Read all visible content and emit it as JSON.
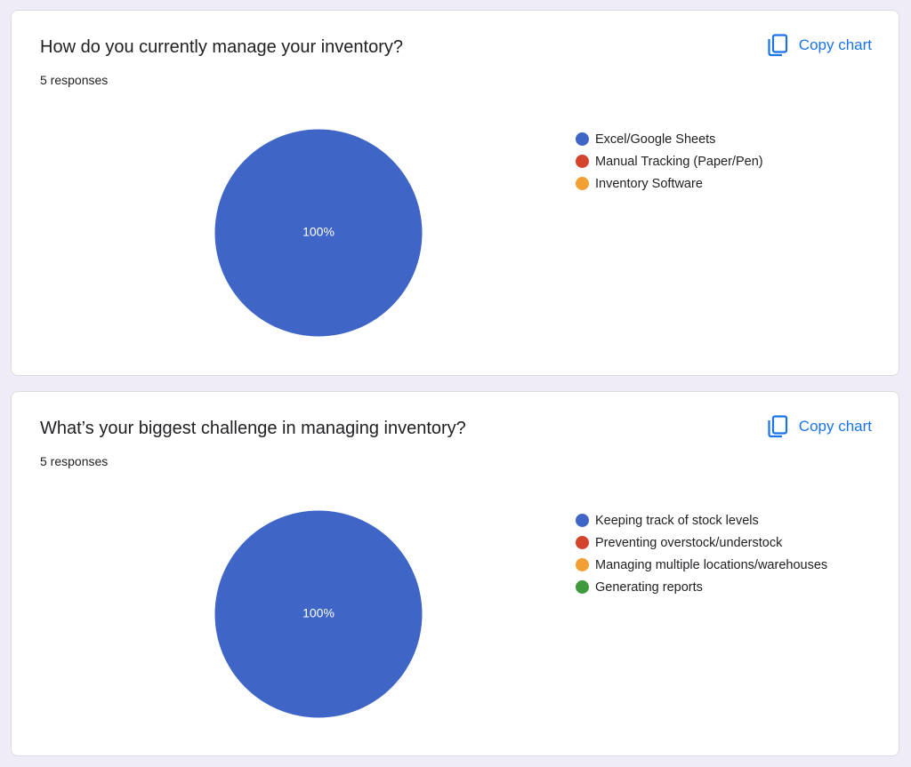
{
  "cards": [
    {
      "question": "How do you currently manage your inventory?",
      "responses": "5 responses",
      "copy_label": "Copy chart",
      "chart_data": {
        "type": "pie",
        "categories": [
          "Excel/Google Sheets",
          "Manual Tracking (Paper/Pen)",
          "Inventory Software"
        ],
        "values": [
          100,
          0,
          0
        ],
        "colors": [
          "#3f66c6",
          "#d4442d",
          "#f2a033"
        ],
        "slice_labels": [
          "100%"
        ],
        "legend": "right"
      }
    },
    {
      "question": "What’s your biggest challenge in managing inventory?",
      "responses": "5 responses",
      "copy_label": "Copy chart",
      "chart_data": {
        "type": "pie",
        "categories": [
          "Keeping track of stock levels",
          "Preventing overstock/understock",
          "Managing multiple locations/warehouses",
          "Generating reports"
        ],
        "values": [
          100,
          0,
          0,
          0
        ],
        "colors": [
          "#3f66c6",
          "#d4442d",
          "#f2a033",
          "#3f9a3d"
        ],
        "slice_labels": [
          "100%"
        ],
        "legend": "right"
      }
    }
  ],
  "icons": {
    "copy": "copy-icon"
  },
  "theme": {
    "accent": "#1a73e8",
    "background": "#efebf7"
  }
}
